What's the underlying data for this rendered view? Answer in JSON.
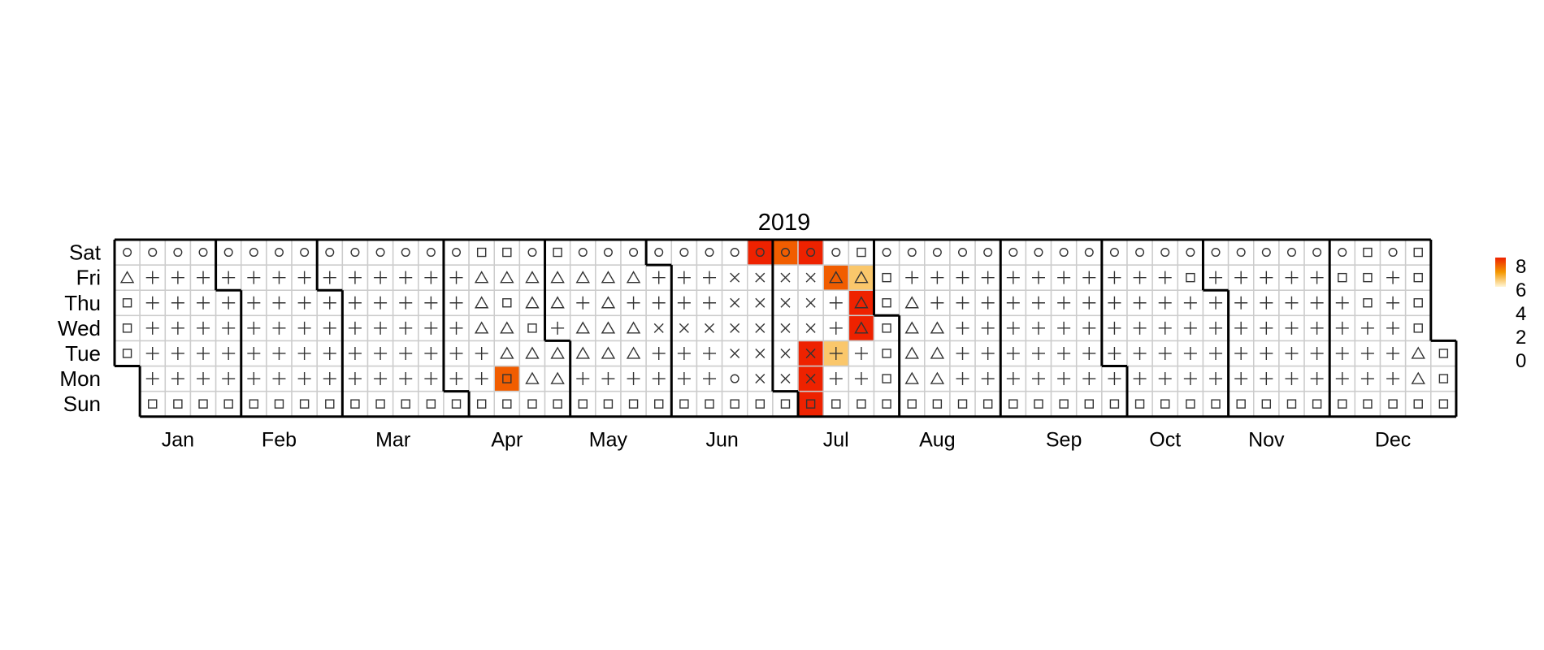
{
  "chart_data": {
    "type": "heatmap",
    "title": "2019",
    "year": 2019,
    "weekday_labels": [
      "Sun",
      "Mon",
      "Tue",
      "Wed",
      "Thu",
      "Fri",
      "Sat"
    ],
    "month_labels": [
      "Jan",
      "Feb",
      "Mar",
      "Apr",
      "May",
      "Jun",
      "Jul",
      "Aug",
      "Sep",
      "Oct",
      "Nov",
      "Dec"
    ],
    "legend": {
      "position": "right",
      "labels": [
        "8",
        "6",
        "4",
        "2",
        "0"
      ],
      "range": [
        0,
        8
      ],
      "color_low": "#fff6d6",
      "color_high": "#ee2200"
    },
    "symbol_map": {
      "circle": "○",
      "plus": "+",
      "triangle": "△",
      "square": "□",
      "cross": "×"
    },
    "default_symbols": {
      "Sun": "square",
      "Mon": "plus",
      "Tue": "plus",
      "Wed": "plus",
      "Thu": "plus",
      "Fri": "plus",
      "Sat": "circle"
    },
    "symbol_overrides": [
      {
        "date": "2019-01-01",
        "symbol": "square"
      },
      {
        "date": "2019-01-02",
        "symbol": "square"
      },
      {
        "date": "2019-01-03",
        "symbol": "square"
      },
      {
        "date": "2019-01-04",
        "symbol": "triangle"
      },
      {
        "date": "2019-04-10",
        "symbol": "triangle"
      },
      {
        "date": "2019-04-11",
        "symbol": "triangle"
      },
      {
        "date": "2019-04-12",
        "symbol": "triangle"
      },
      {
        "date": "2019-04-13",
        "symbol": "square"
      },
      {
        "date": "2019-04-15",
        "symbol": "square"
      },
      {
        "date": "2019-04-16",
        "symbol": "triangle"
      },
      {
        "date": "2019-04-17",
        "symbol": "triangle"
      },
      {
        "date": "2019-04-18",
        "symbol": "square"
      },
      {
        "date": "2019-04-19",
        "symbol": "triangle"
      },
      {
        "date": "2019-04-20",
        "symbol": "square"
      },
      {
        "date": "2019-04-22",
        "symbol": "triangle"
      },
      {
        "date": "2019-04-23",
        "symbol": "triangle"
      },
      {
        "date": "2019-04-24",
        "symbol": "square"
      },
      {
        "date": "2019-04-25",
        "symbol": "triangle"
      },
      {
        "date": "2019-04-26",
        "symbol": "triangle"
      },
      {
        "date": "2019-04-29",
        "symbol": "triangle"
      },
      {
        "date": "2019-04-30",
        "symbol": "triangle"
      },
      {
        "date": "2019-05-02",
        "symbol": "triangle"
      },
      {
        "date": "2019-05-03",
        "symbol": "triangle"
      },
      {
        "date": "2019-05-04",
        "symbol": "square"
      },
      {
        "date": "2019-05-07",
        "symbol": "triangle"
      },
      {
        "date": "2019-05-08",
        "symbol": "triangle"
      },
      {
        "date": "2019-05-10",
        "symbol": "triangle"
      },
      {
        "date": "2019-05-14",
        "symbol": "triangle"
      },
      {
        "date": "2019-05-15",
        "symbol": "triangle"
      },
      {
        "date": "2019-05-16",
        "symbol": "triangle"
      },
      {
        "date": "2019-05-17",
        "symbol": "triangle"
      },
      {
        "date": "2019-05-21",
        "symbol": "triangle"
      },
      {
        "date": "2019-05-22",
        "symbol": "triangle"
      },
      {
        "date": "2019-05-24",
        "symbol": "triangle"
      },
      {
        "date": "2019-05-29",
        "symbol": "cross"
      },
      {
        "date": "2019-06-05",
        "symbol": "cross"
      },
      {
        "date": "2019-06-12",
        "symbol": "cross"
      },
      {
        "date": "2019-06-17",
        "symbol": "circle"
      },
      {
        "date": "2019-06-18",
        "symbol": "cross"
      },
      {
        "date": "2019-06-19",
        "symbol": "cross"
      },
      {
        "date": "2019-06-20",
        "symbol": "cross"
      },
      {
        "date": "2019-06-21",
        "symbol": "cross"
      },
      {
        "date": "2019-06-24",
        "symbol": "cross"
      },
      {
        "date": "2019-06-25",
        "symbol": "cross"
      },
      {
        "date": "2019-06-26",
        "symbol": "cross"
      },
      {
        "date": "2019-06-27",
        "symbol": "cross"
      },
      {
        "date": "2019-06-28",
        "symbol": "cross"
      },
      {
        "date": "2019-07-01",
        "symbol": "cross"
      },
      {
        "date": "2019-07-02",
        "symbol": "cross"
      },
      {
        "date": "2019-07-03",
        "symbol": "cross"
      },
      {
        "date": "2019-07-04",
        "symbol": "cross"
      },
      {
        "date": "2019-07-05",
        "symbol": "cross"
      },
      {
        "date": "2019-07-08",
        "symbol": "cross"
      },
      {
        "date": "2019-07-09",
        "symbol": "cross"
      },
      {
        "date": "2019-07-10",
        "symbol": "cross"
      },
      {
        "date": "2019-07-11",
        "symbol": "cross"
      },
      {
        "date": "2019-07-12",
        "symbol": "cross"
      },
      {
        "date": "2019-07-19",
        "symbol": "triangle"
      },
      {
        "date": "2019-07-24",
        "symbol": "triangle"
      },
      {
        "date": "2019-07-25",
        "symbol": "triangle"
      },
      {
        "date": "2019-07-26",
        "symbol": "triangle"
      },
      {
        "date": "2019-07-27",
        "symbol": "square"
      },
      {
        "date": "2019-07-29",
        "symbol": "square"
      },
      {
        "date": "2019-07-30",
        "symbol": "square"
      },
      {
        "date": "2019-07-31",
        "symbol": "square"
      },
      {
        "date": "2019-08-01",
        "symbol": "square"
      },
      {
        "date": "2019-08-02",
        "symbol": "square"
      },
      {
        "date": "2019-08-05",
        "symbol": "triangle"
      },
      {
        "date": "2019-08-06",
        "symbol": "triangle"
      },
      {
        "date": "2019-08-07",
        "symbol": "triangle"
      },
      {
        "date": "2019-08-08",
        "symbol": "triangle"
      },
      {
        "date": "2019-08-12",
        "symbol": "triangle"
      },
      {
        "date": "2019-08-13",
        "symbol": "triangle"
      },
      {
        "date": "2019-08-14",
        "symbol": "triangle"
      },
      {
        "date": "2019-10-25",
        "symbol": "square"
      },
      {
        "date": "2019-12-06",
        "symbol": "square"
      },
      {
        "date": "2019-12-12",
        "symbol": "square"
      },
      {
        "date": "2019-12-13",
        "symbol": "square"
      },
      {
        "date": "2019-12-14",
        "symbol": "square"
      },
      {
        "date": "2019-12-23",
        "symbol": "triangle"
      },
      {
        "date": "2019-12-24",
        "symbol": "triangle"
      },
      {
        "date": "2019-12-25",
        "symbol": "square"
      },
      {
        "date": "2019-12-26",
        "symbol": "square"
      },
      {
        "date": "2019-12-27",
        "symbol": "square"
      },
      {
        "date": "2019-12-28",
        "symbol": "square"
      },
      {
        "date": "2019-12-30",
        "symbol": "square"
      },
      {
        "date": "2019-12-31",
        "symbol": "square"
      }
    ],
    "values": [
      {
        "date": "2019-04-15",
        "value": 6
      },
      {
        "date": "2019-06-29",
        "value": 8
      },
      {
        "date": "2019-07-06",
        "value": 6
      },
      {
        "date": "2019-07-13",
        "value": 8
      },
      {
        "date": "2019-07-07",
        "value": 8
      },
      {
        "date": "2019-07-08",
        "value": 8
      },
      {
        "date": "2019-07-09",
        "value": 8
      },
      {
        "date": "2019-07-16",
        "value": 2
      },
      {
        "date": "2019-07-19",
        "value": 6
      },
      {
        "date": "2019-07-26",
        "value": 2
      },
      {
        "date": "2019-07-24",
        "value": 8
      },
      {
        "date": "2019-07-25",
        "value": 8
      }
    ]
  }
}
